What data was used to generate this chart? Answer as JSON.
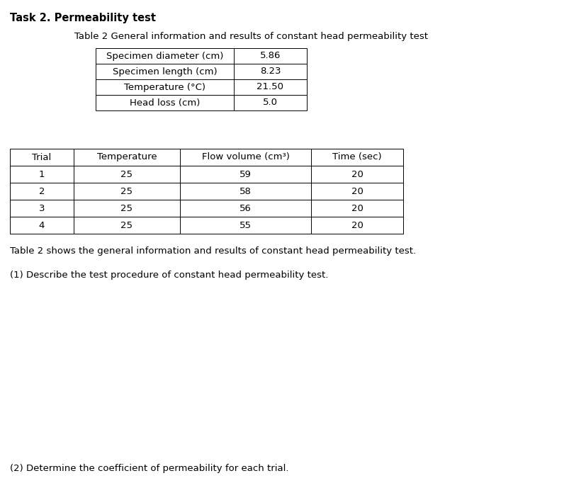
{
  "title": "Task 2. Permeability test",
  "subtitle": "Table 2 General information and results of constant head permeability test",
  "info_table": {
    "rows": [
      [
        "Specimen diameter (cm)",
        "5.86"
      ],
      [
        "Specimen length (cm)",
        "8.23"
      ],
      [
        "Temperature (°C)",
        "21.50"
      ],
      [
        "Head loss (cm)",
        "5.0"
      ]
    ]
  },
  "data_table": {
    "headers": [
      "Trial",
      "Temperature",
      "Flow volume (cm³)",
      "Time (sec)"
    ],
    "rows": [
      [
        "1",
        "25",
        "59",
        "20"
      ],
      [
        "2",
        "25",
        "58",
        "20"
      ],
      [
        "3",
        "25",
        "56",
        "20"
      ],
      [
        "4",
        "25",
        "55",
        "20"
      ]
    ]
  },
  "text1": "Table 2 shows the general information and results of constant head permeability test.",
  "text2": "(1) Describe the test procedure of constant head permeability test.",
  "text3": "(2) Determine the coefficient of permeability for each trial.",
  "bg_color": "#ffffff",
  "font_size_title": 10.5,
  "font_size_body": 9.5
}
